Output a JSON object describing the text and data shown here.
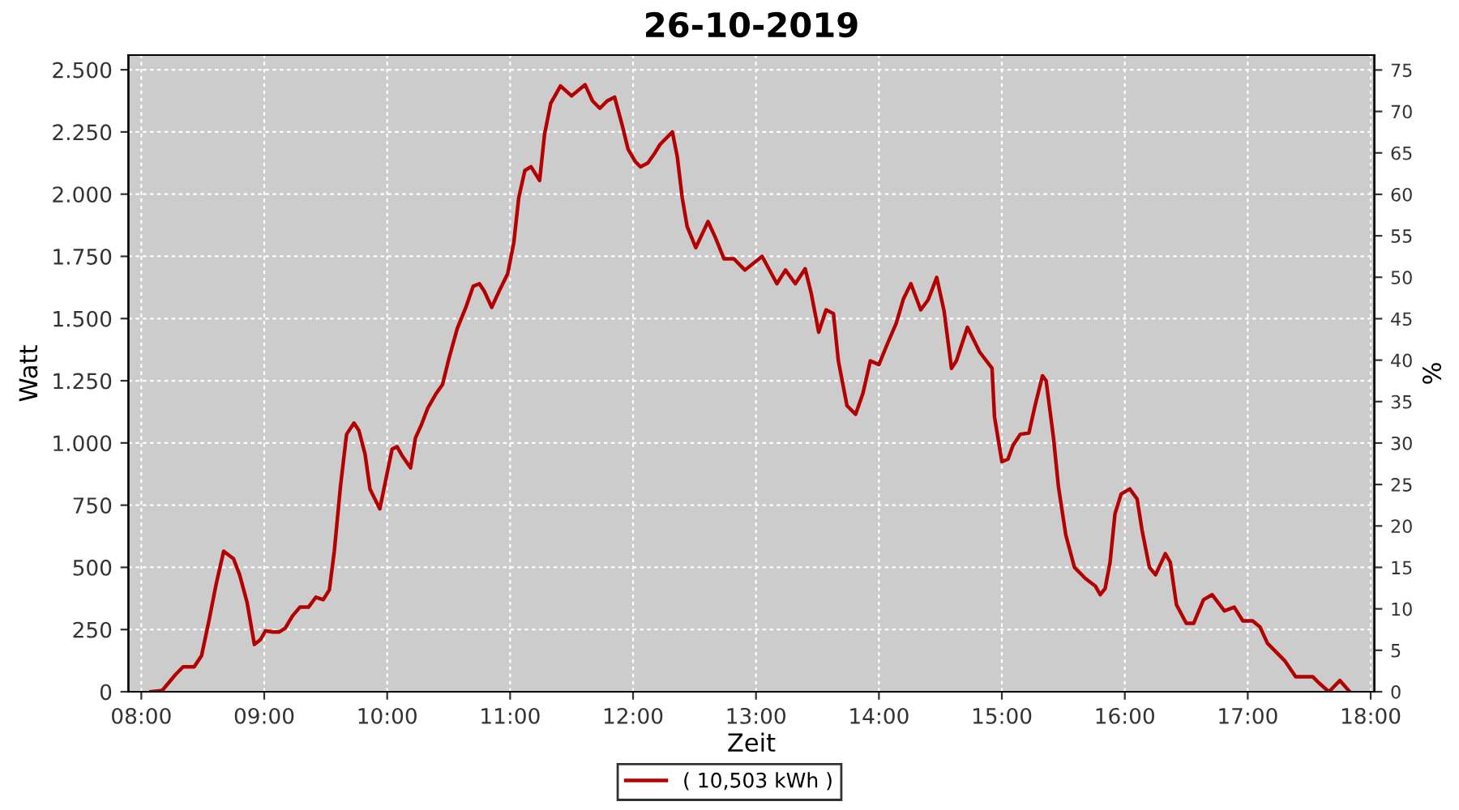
{
  "chart_data": {
    "type": "line",
    "title": "26-10-2019",
    "xlabel": "Zeit",
    "ylabel": "Watt",
    "y2label": "%",
    "xlim": [
      7.895,
      18.03
    ],
    "ylim": [
      0,
      2559
    ],
    "y2lim": [
      0,
      76.8
    ],
    "xticks": [
      {
        "value": 8,
        "label": "08:00"
      },
      {
        "value": 9,
        "label": "09:00"
      },
      {
        "value": 10,
        "label": "10:00"
      },
      {
        "value": 11,
        "label": "11:00"
      },
      {
        "value": 12,
        "label": "12:00"
      },
      {
        "value": 13,
        "label": "13:00"
      },
      {
        "value": 14,
        "label": "14:00"
      },
      {
        "value": 15,
        "label": "15:00"
      },
      {
        "value": 16,
        "label": "16:00"
      },
      {
        "value": 17,
        "label": "17:00"
      },
      {
        "value": 18,
        "label": "18:00"
      }
    ],
    "yticks": [
      0,
      250,
      500,
      750,
      {
        "value": 1000,
        "label": "1.000"
      },
      {
        "value": 1250,
        "label": "1.250"
      },
      {
        "value": 1500,
        "label": "1.500"
      },
      {
        "value": 1750,
        "label": "1.750"
      },
      {
        "value": 2000,
        "label": "2.000"
      },
      {
        "value": 2250,
        "label": "2.250"
      },
      {
        "value": 2500,
        "label": "2.500"
      }
    ],
    "y2ticks": [
      0,
      5,
      10,
      15,
      20,
      25,
      30,
      35,
      40,
      45,
      50,
      55,
      60,
      65,
      70,
      75
    ],
    "grid": true,
    "legend": "bottom",
    "marker": "none",
    "line_style": "solid",
    "series": [
      {
        "name": "( 10,503 kWh )",
        "color": "#b40000",
        "x": [
          8.08,
          8.17,
          8.28,
          8.34,
          8.43,
          8.49,
          8.55,
          8.61,
          8.67,
          8.75,
          8.8,
          8.86,
          8.92,
          8.97,
          9.01,
          9.07,
          9.12,
          9.17,
          9.23,
          9.29,
          9.36,
          9.42,
          9.48,
          9.53,
          9.57,
          9.62,
          9.67,
          9.73,
          9.77,
          9.82,
          9.86,
          9.94,
          9.99,
          10.04,
          10.08,
          10.12,
          10.19,
          10.23,
          10.28,
          10.33,
          10.4,
          10.45,
          10.5,
          10.57,
          10.64,
          10.7,
          10.75,
          10.79,
          10.85,
          10.92,
          10.98,
          11.03,
          11.07,
          11.12,
          11.17,
          11.24,
          11.28,
          11.33,
          11.41,
          11.5,
          11.61,
          11.67,
          11.73,
          11.79,
          11.85,
          11.91,
          11.96,
          12.02,
          12.06,
          12.12,
          12.17,
          12.22,
          12.32,
          12.36,
          12.4,
          12.44,
          12.51,
          12.61,
          12.67,
          12.74,
          12.82,
          12.91,
          13.05,
          13.17,
          13.24,
          13.32,
          13.4,
          13.45,
          13.51,
          13.57,
          13.63,
          13.67,
          13.74,
          13.81,
          13.87,
          13.93,
          14.0,
          14.07,
          14.14,
          14.2,
          14.26,
          14.34,
          14.4,
          14.47,
          14.53,
          14.59,
          14.63,
          14.72,
          14.82,
          14.92,
          14.94,
          15.0,
          15.05,
          15.09,
          15.15,
          15.22,
          15.27,
          15.33,
          15.36,
          15.42,
          15.46,
          15.52,
          15.59,
          15.68,
          15.76,
          15.8,
          15.84,
          15.88,
          15.92,
          15.97,
          16.04,
          16.1,
          16.14,
          16.2,
          16.25,
          16.33,
          16.37,
          16.42,
          16.5,
          16.56,
          16.64,
          16.71,
          16.81,
          16.89,
          16.96,
          17.04,
          17.1,
          17.16,
          17.24,
          17.3,
          17.39,
          17.53,
          17.58,
          17.66,
          17.75,
          17.83
        ],
        "values": [
          0,
          5,
          70,
          100,
          100,
          145,
          285,
          435,
          565,
          535,
          470,
          360,
          190,
          210,
          245,
          240,
          240,
          255,
          305,
          340,
          340,
          380,
          370,
          410,
          565,
          825,
          1035,
          1080,
          1050,
          955,
          815,
          735,
          855,
          975,
          985,
          950,
          900,
          1020,
          1075,
          1140,
          1200,
          1235,
          1335,
          1460,
          1545,
          1630,
          1640,
          1610,
          1545,
          1620,
          1680,
          1805,
          1985,
          2095,
          2110,
          2055,
          2240,
          2365,
          2435,
          2395,
          2440,
          2375,
          2345,
          2375,
          2390,
          2280,
          2180,
          2130,
          2110,
          2125,
          2160,
          2200,
          2250,
          2150,
          1985,
          1870,
          1785,
          1890,
          1825,
          1740,
          1740,
          1695,
          1750,
          1640,
          1695,
          1640,
          1700,
          1600,
          1445,
          1535,
          1520,
          1330,
          1150,
          1115,
          1200,
          1330,
          1315,
          1400,
          1480,
          1580,
          1640,
          1535,
          1575,
          1665,
          1530,
          1300,
          1330,
          1465,
          1365,
          1300,
          1105,
          925,
          935,
          990,
          1035,
          1040,
          1150,
          1270,
          1250,
          1020,
          825,
          630,
          500,
          455,
          425,
          390,
          415,
          520,
          715,
          795,
          815,
          775,
          650,
          500,
          470,
          555,
          520,
          350,
          275,
          275,
          370,
          390,
          325,
          340,
          285,
          285,
          260,
          195,
          155,
          125,
          60,
          60,
          35,
          0,
          45,
          0
        ]
      }
    ]
  }
}
